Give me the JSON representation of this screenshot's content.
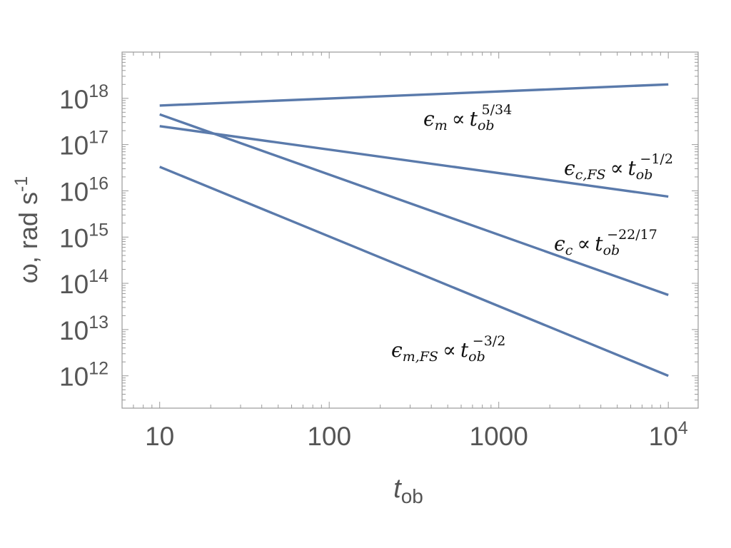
{
  "chart_data": {
    "type": "line",
    "x_scale": "log",
    "y_scale": "log",
    "xlabel": {
      "base": "t",
      "sub": "ob"
    },
    "ylabel": {
      "pre": "ω, rad s",
      "sup": "-1"
    },
    "xlim": [
      6,
      15000
    ],
    "ylim": [
      200000000000.0,
      1e+19
    ],
    "grid": false,
    "x_ticks": [
      {
        "value": 10,
        "label": "10",
        "sup": ""
      },
      {
        "value": 100,
        "label": "100",
        "sup": ""
      },
      {
        "value": 1000,
        "label": "1000",
        "sup": ""
      },
      {
        "value": 10000,
        "label": "10",
        "sup": "4"
      }
    ],
    "y_ticks": [
      {
        "value": 1000000000000.0,
        "label": "10",
        "sup": "12"
      },
      {
        "value": 10000000000000.0,
        "label": "10",
        "sup": "13"
      },
      {
        "value": 100000000000000.0,
        "label": "10",
        "sup": "14"
      },
      {
        "value": 1000000000000000.0,
        "label": "10",
        "sup": "15"
      },
      {
        "value": 1e+16,
        "label": "10",
        "sup": "16"
      },
      {
        "value": 1e+17,
        "label": "10",
        "sup": "17"
      },
      {
        "value": 1e+18,
        "label": "10",
        "sup": "18"
      }
    ],
    "series": [
      {
        "id": "eps-m",
        "label": {
          "sym": "ϵ",
          "sub": "m",
          "rel": "∝",
          "t": "t",
          "tsub": "ob",
          "exp": "5/34"
        },
        "x": [
          10,
          10000
        ],
        "y": [
          7e+17,
          2e+18
        ]
      },
      {
        "id": "eps-c-fs",
        "label": {
          "sym": "ϵ",
          "sub": "c,FS",
          "rel": "∝",
          "t": "t",
          "tsub": "ob",
          "exp": "−1/2"
        },
        "x": [
          10,
          10000
        ],
        "y": [
          2.5e+17,
          7500000000000000.0
        ]
      },
      {
        "id": "eps-c",
        "label": {
          "sym": "ϵ",
          "sub": "c",
          "rel": "∝",
          "t": "t",
          "tsub": "ob",
          "exp": "−22/17"
        },
        "x": [
          10,
          10000
        ],
        "y": [
          4.5e+17,
          56000000000000.0
        ]
      },
      {
        "id": "eps-m-fs",
        "label": {
          "sym": "ϵ",
          "sub": "m,FS",
          "rel": "∝",
          "t": "t",
          "tsub": "ob",
          "exp": "−3/2"
        },
        "x": [
          10,
          10000
        ],
        "y": [
          3.3e+16,
          1000000000000.0
        ]
      }
    ]
  }
}
